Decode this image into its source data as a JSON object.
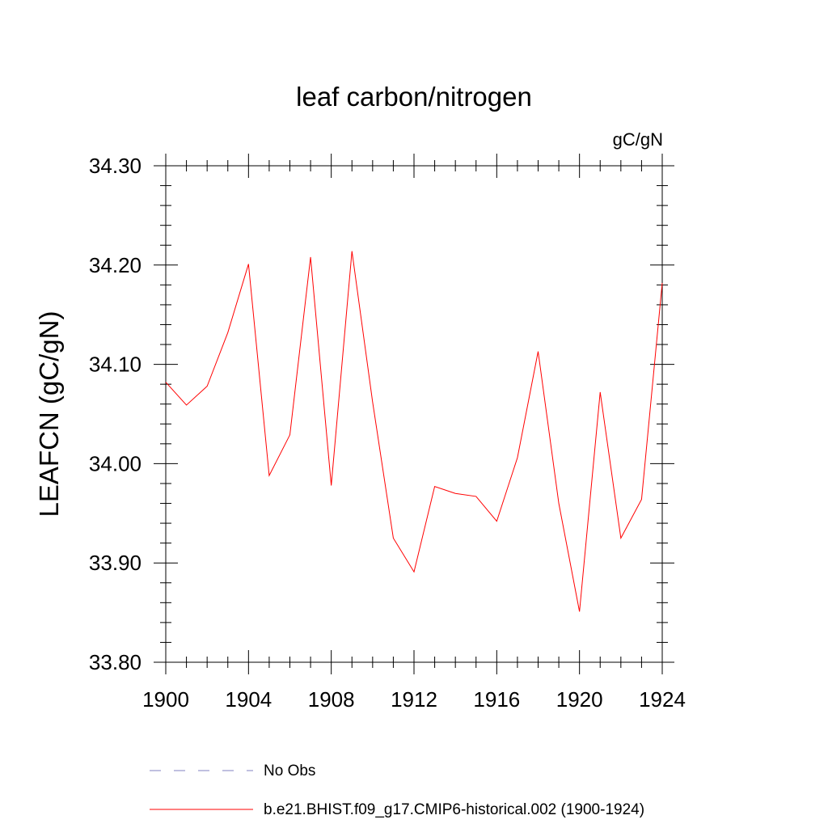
{
  "chart_data": {
    "type": "line",
    "title": "leaf carbon/nitrogen",
    "units_label": "gC/gN",
    "ylabel": "LEAFCN  (gC/gN)",
    "xlabel": "",
    "xlim": [
      1900,
      1924
    ],
    "ylim": [
      33.8,
      34.3
    ],
    "x_ticks": [
      1900,
      1904,
      1908,
      1912,
      1916,
      1920,
      1924
    ],
    "x_tick_labels": [
      "1900",
      "1904",
      "1908",
      "1912",
      "1916",
      "1920",
      "1924"
    ],
    "y_ticks": [
      33.8,
      33.9,
      34.0,
      34.1,
      34.2,
      34.3
    ],
    "y_tick_labels": [
      "33.80",
      "33.90",
      "34.00",
      "34.10",
      "34.20",
      "34.30"
    ],
    "grid": false,
    "series": [
      {
        "name": "b.e21.BHIST.f09_g17.CMIP6-historical.002 (1900-1924)",
        "color": "#ff0000",
        "x": [
          1900,
          1901,
          1902,
          1903,
          1904,
          1905,
          1906,
          1907,
          1908,
          1909,
          1910,
          1911,
          1912,
          1913,
          1914,
          1915,
          1916,
          1917,
          1918,
          1919,
          1920,
          1921,
          1922,
          1923,
          1924
        ],
        "y": [
          34.082,
          34.059,
          34.078,
          34.132,
          34.201,
          33.988,
          34.029,
          34.208,
          33.978,
          34.214,
          34.062,
          33.925,
          33.891,
          33.977,
          33.97,
          33.967,
          33.942,
          34.006,
          34.113,
          33.96,
          33.851,
          34.072,
          33.925,
          33.964,
          34.182
        ]
      }
    ],
    "legend": {
      "placement": "bottom",
      "entries": [
        {
          "label": "No Obs",
          "color": "#8080c0",
          "style": "dashed"
        },
        {
          "label": "b.e21.BHIST.f09_g17.CMIP6-historical.002 (1900-1924)",
          "color": "#ff0000",
          "style": "solid"
        }
      ]
    }
  }
}
